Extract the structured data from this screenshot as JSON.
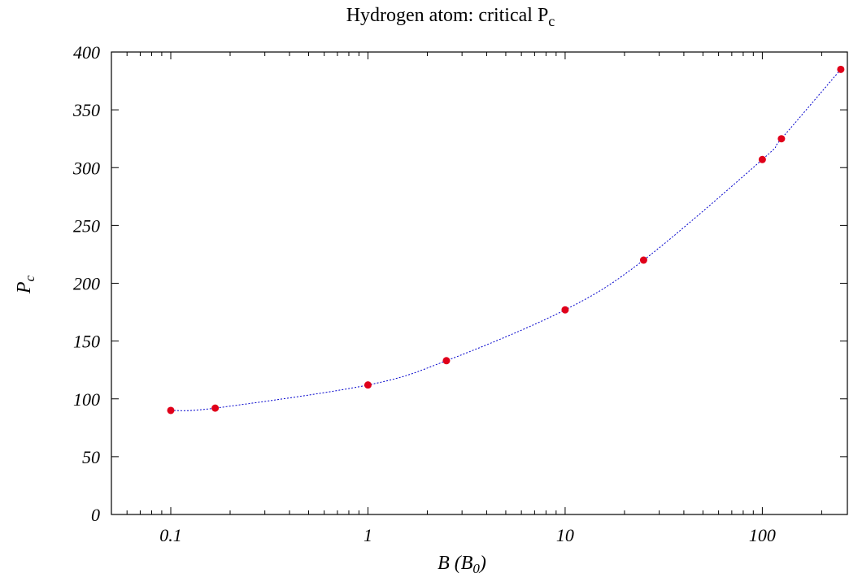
{
  "chart_data": {
    "type": "scatter",
    "title_main": "Hydrogen atom: critical P",
    "title_sub": "c",
    "xlabel_main": "B (B",
    "xlabel_sub": "0",
    "xlabel_end": ")",
    "ylabel_main": "P",
    "ylabel_sub": "c",
    "x_scale": "log",
    "xlim": [
      0.05,
      270
    ],
    "ylim": [
      0,
      400
    ],
    "x_ticks": [
      0.1,
      1,
      10,
      100
    ],
    "x_tick_labels": [
      "0.1",
      "1",
      "10",
      "100"
    ],
    "y_ticks": [
      0,
      50,
      100,
      150,
      200,
      250,
      300,
      350,
      400
    ],
    "y_tick_labels": [
      "0",
      "50",
      "100",
      "150",
      "200",
      "250",
      "300",
      "350",
      "400"
    ],
    "grid": false,
    "series": [
      {
        "points": [
          {
            "x": 0.1,
            "y": 90
          },
          {
            "x": 0.168,
            "y": 92
          },
          {
            "x": 1,
            "y": 112
          },
          {
            "x": 2.5,
            "y": 133
          },
          {
            "x": 10,
            "y": 177
          },
          {
            "x": 25,
            "y": 220
          },
          {
            "x": 100,
            "y": 307
          },
          {
            "x": 125,
            "y": 325
          },
          {
            "x": 250,
            "y": 385
          }
        ],
        "marker_color": "#e0001a",
        "line_color": "#0000cc",
        "line_style": "dotted"
      }
    ]
  }
}
